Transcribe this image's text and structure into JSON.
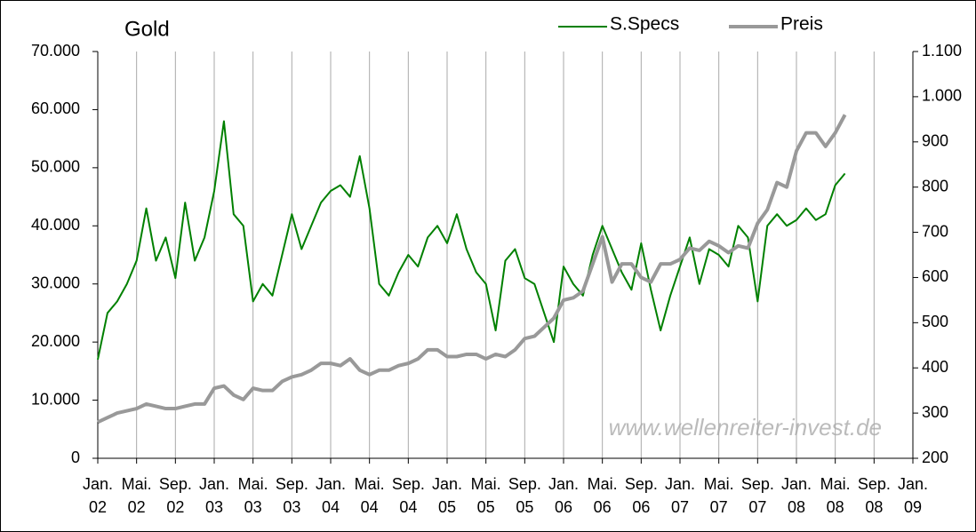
{
  "chart_data": {
    "type": "line",
    "title": "Gold",
    "annotation": "www.wellenreiter-invest.de",
    "legend": "top-right",
    "x": [
      "2002-01",
      "2002-02",
      "2002-03",
      "2002-04",
      "2002-05",
      "2002-06",
      "2002-07",
      "2002-08",
      "2002-09",
      "2002-10",
      "2002-11",
      "2002-12",
      "2003-01",
      "2003-02",
      "2003-03",
      "2003-04",
      "2003-05",
      "2003-06",
      "2003-07",
      "2003-08",
      "2003-09",
      "2003-10",
      "2003-11",
      "2003-12",
      "2004-01",
      "2004-02",
      "2004-03",
      "2004-04",
      "2004-05",
      "2004-06",
      "2004-07",
      "2004-08",
      "2004-09",
      "2004-10",
      "2004-11",
      "2004-12",
      "2005-01",
      "2005-02",
      "2005-03",
      "2005-04",
      "2005-05",
      "2005-06",
      "2005-07",
      "2005-08",
      "2005-09",
      "2005-10",
      "2005-11",
      "2005-12",
      "2006-01",
      "2006-02",
      "2006-03",
      "2006-04",
      "2006-05",
      "2006-06",
      "2006-07",
      "2006-08",
      "2006-09",
      "2006-10",
      "2006-11",
      "2006-12",
      "2007-01",
      "2007-02",
      "2007-03",
      "2007-04",
      "2007-05",
      "2007-06",
      "2007-07",
      "2007-08",
      "2007-09",
      "2007-10",
      "2007-11",
      "2007-12",
      "2008-01",
      "2008-02",
      "2008-03",
      "2008-04",
      "2008-05",
      "2008-06"
    ],
    "series": [
      {
        "name": "S.Specs",
        "color": "#008000",
        "axis": "y",
        "values": [
          17000,
          25000,
          27000,
          30000,
          34000,
          43000,
          34000,
          38000,
          31000,
          44000,
          34000,
          38000,
          46000,
          58000,
          42000,
          40000,
          27000,
          30000,
          28000,
          35000,
          42000,
          36000,
          40000,
          44000,
          46000,
          47000,
          45000,
          52000,
          43000,
          30000,
          28000,
          32000,
          35000,
          33000,
          38000,
          40000,
          37000,
          42000,
          36000,
          32000,
          30000,
          22000,
          34000,
          36000,
          31000,
          30000,
          25000,
          20000,
          33000,
          30000,
          28000,
          35000,
          40000,
          36000,
          32000,
          29000,
          37000,
          29000,
          22000,
          28000,
          33000,
          38000,
          30000,
          36000,
          35000,
          33000,
          40000,
          38000,
          27000,
          40000,
          42000,
          40000,
          41000,
          43000,
          41000,
          42000,
          47000,
          49000
        ]
      },
      {
        "name": "Preis",
        "color": "#999999",
        "axis": "y2",
        "values": [
          280,
          290,
          300,
          305,
          310,
          320,
          315,
          310,
          310,
          315,
          320,
          320,
          355,
          360,
          340,
          330,
          355,
          350,
          350,
          370,
          380,
          385,
          395,
          410,
          410,
          405,
          420,
          395,
          385,
          395,
          395,
          405,
          410,
          420,
          440,
          440,
          425,
          425,
          430,
          430,
          420,
          430,
          425,
          440,
          465,
          470,
          490,
          510,
          550,
          555,
          570,
          630,
          690,
          590,
          630,
          630,
          600,
          590,
          630,
          630,
          640,
          665,
          660,
          680,
          670,
          655,
          670,
          665,
          720,
          750,
          810,
          800,
          880,
          920,
          920,
          890,
          920,
          960
        ]
      }
    ],
    "xlim": [
      "2002-01",
      "2009-01"
    ],
    "xticks": [
      {
        "value": "2002-01",
        "label": "Jan. 02"
      },
      {
        "value": "2002-05",
        "label": "Mai. 02"
      },
      {
        "value": "2002-09",
        "label": "Sep. 02"
      },
      {
        "value": "2003-01",
        "label": "Jan. 03"
      },
      {
        "value": "2003-05",
        "label": "Mai. 03"
      },
      {
        "value": "2003-09",
        "label": "Sep. 03"
      },
      {
        "value": "2004-01",
        "label": "Jan. 04"
      },
      {
        "value": "2004-05",
        "label": "Mai. 04"
      },
      {
        "value": "2004-09",
        "label": "Sep. 04"
      },
      {
        "value": "2005-01",
        "label": "Jan. 05"
      },
      {
        "value": "2005-05",
        "label": "Mai. 05"
      },
      {
        "value": "2005-09",
        "label": "Sep. 05"
      },
      {
        "value": "2006-01",
        "label": "Jan. 06"
      },
      {
        "value": "2006-05",
        "label": "Mai. 06"
      },
      {
        "value": "2006-09",
        "label": "Sep. 06"
      },
      {
        "value": "2007-01",
        "label": "Jan. 07"
      },
      {
        "value": "2007-05",
        "label": "Mai. 07"
      },
      {
        "value": "2007-09",
        "label": "Sep. 07"
      },
      {
        "value": "2008-01",
        "label": "Jan. 08"
      },
      {
        "value": "2008-05",
        "label": "Mai. 08"
      },
      {
        "value": "2008-09",
        "label": "Sep. 08"
      },
      {
        "value": "2009-01",
        "label": "Jan. 09"
      }
    ],
    "ylim": [
      0,
      70000
    ],
    "yticks": [
      0,
      {
        "value": 10000,
        "label": "10.000"
      },
      {
        "value": 20000,
        "label": "20.000"
      },
      {
        "value": 30000,
        "label": "30.000"
      },
      {
        "value": 40000,
        "label": "40.000"
      },
      {
        "value": 50000,
        "label": "50.000"
      },
      {
        "value": 60000,
        "label": "60.000"
      },
      {
        "value": 70000,
        "label": "70.000"
      }
    ],
    "y2lim": [
      200,
      1100
    ],
    "y2ticks": [
      200,
      300,
      400,
      500,
      600,
      700,
      800,
      900,
      {
        "value": 1000,
        "label": "1.000"
      },
      {
        "value": 1100,
        "label": "1.100"
      }
    ],
    "grid": "x"
  }
}
